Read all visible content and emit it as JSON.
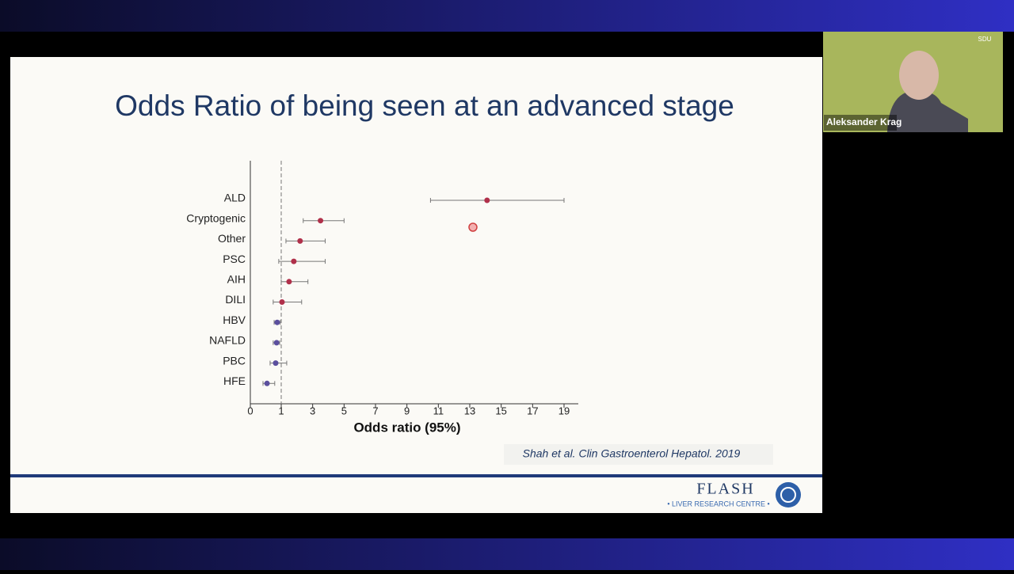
{
  "chart_data": {
    "type": "forest",
    "title": "Odds Ratio of being seen at an advanced stage",
    "categories": [
      "ALD",
      "Cryptogenic",
      "Other",
      "PSC",
      "AIH",
      "DILI",
      "HBV",
      "NAFLD",
      "PBC",
      "HFE"
    ],
    "values": [
      14.1,
      3.5,
      2.2,
      1.8,
      1.5,
      1.05,
      0.87,
      0.85,
      0.82,
      0.54
    ],
    "ci_low": [
      10.5,
      2.4,
      1.3,
      0.92,
      1.0,
      0.74,
      0.77,
      0.74,
      0.64,
      0.41
    ],
    "ci_high": [
      19.0,
      5.0,
      3.8,
      3.8,
      2.7,
      2.3,
      0.97,
      0.95,
      1.35,
      0.79
    ],
    "colors": [
      "#b0304a",
      "#b0304a",
      "#b0304a",
      "#b0304a",
      "#b0304a",
      "#b0304a",
      "#5b4f9e",
      "#5b4f9e",
      "#5b4f9e",
      "#5b4f9e"
    ],
    "xlabel": "Odds ratio (95%)",
    "xlim": [
      0,
      19
    ],
    "xticks": [
      0,
      1,
      3,
      5,
      7,
      9,
      11,
      13,
      15,
      17,
      19
    ],
    "reference_line": 1
  },
  "citation": "Shah et al. Clin Gastroenterol Hepatol. 2019",
  "logo": {
    "name": "FLASH",
    "tagline": "• LIVER RESEARCH CENTRE •"
  },
  "video": {
    "speaker": "Aleksander Krag",
    "badge": "SDU"
  }
}
